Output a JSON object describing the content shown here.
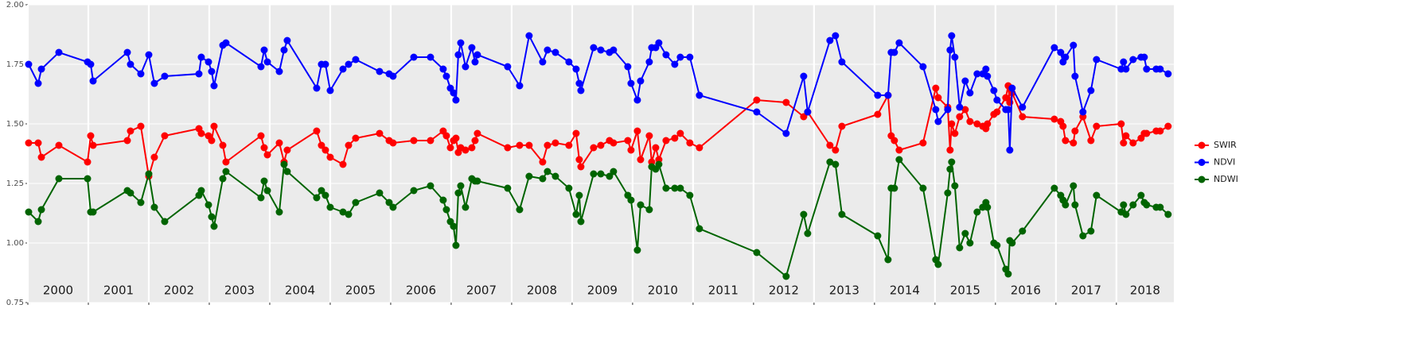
{
  "chart_data": {
    "type": "line",
    "x": [
      2000.013,
      2000.171,
      2000.224,
      2000.513,
      2000.987,
      2001.039,
      2001.079,
      2001.645,
      2001.697,
      2001.868,
      2002.0,
      2002.092,
      2002.263,
      2002.829,
      2002.868,
      2002.987,
      2003.039,
      2003.079,
      2003.224,
      2003.276,
      2003.855,
      2003.908,
      2003.961,
      2004.158,
      2004.237,
      2004.289,
      2004.776,
      2004.855,
      2004.921,
      2005.0,
      2005.211,
      2005.303,
      2005.421,
      2005.816,
      2005.974,
      2006.039,
      2006.382,
      2006.658,
      2006.868,
      2006.921,
      2006.987,
      2007.039,
      2007.079,
      2007.118,
      2007.158,
      2007.237,
      2007.342,
      2007.395,
      2007.434,
      2007.934,
      2008.132,
      2008.289,
      2008.513,
      2008.592,
      2008.724,
      2008.947,
      2009.066,
      2009.118,
      2009.145,
      2009.355,
      2009.474,
      2009.618,
      2009.684,
      2009.921,
      2009.974,
      2010.079,
      2010.132,
      2010.276,
      2010.316,
      2010.382,
      2010.434,
      2010.553,
      2010.697,
      2010.789,
      2010.947,
      2011.105,
      2012.053,
      2012.539,
      2012.829,
      2012.895,
      2013.263,
      2013.355,
      2013.461,
      2014.053,
      2014.224,
      2014.276,
      2014.329,
      2014.408,
      2014.803,
      2015.013,
      2015.053,
      2015.211,
      2015.25,
      2015.276,
      2015.329,
      2015.408,
      2015.5,
      2015.579,
      2015.697,
      2015.789,
      2015.842,
      2015.868,
      2015.974,
      2016.026,
      2016.171,
      2016.211,
      2016.237,
      2016.276,
      2016.447,
      2016.974,
      2017.079,
      2017.118,
      2017.158,
      2017.289,
      2017.316,
      2017.447,
      2017.579,
      2017.671,
      2018.079,
      2018.118,
      2018.158,
      2018.276,
      2018.408,
      2018.461,
      2018.5,
      2018.658,
      2018.724,
      2018.855
    ],
    "series": [
      {
        "name": "SWIR",
        "color": "#ff0000",
        "values": [
          1.42,
          1.42,
          1.36,
          1.41,
          1.34,
          1.45,
          1.41,
          1.43,
          1.47,
          1.49,
          1.28,
          1.36,
          1.45,
          1.48,
          1.46,
          1.45,
          1.43,
          1.49,
          1.41,
          1.34,
          1.45,
          1.4,
          1.37,
          1.42,
          1.34,
          1.39,
          1.47,
          1.41,
          1.39,
          1.36,
          1.33,
          1.41,
          1.44,
          1.46,
          1.43,
          1.42,
          1.43,
          1.43,
          1.47,
          1.45,
          1.4,
          1.43,
          1.44,
          1.38,
          1.4,
          1.39,
          1.4,
          1.43,
          1.46,
          1.4,
          1.41,
          1.41,
          1.34,
          1.41,
          1.42,
          1.41,
          1.46,
          1.35,
          1.32,
          1.4,
          1.41,
          1.43,
          1.42,
          1.43,
          1.39,
          1.47,
          1.35,
          1.45,
          1.34,
          1.4,
          1.35,
          1.43,
          1.44,
          1.46,
          1.42,
          1.4,
          1.6,
          1.59,
          1.53,
          1.55,
          1.41,
          1.39,
          1.49,
          1.54,
          1.62,
          1.45,
          1.43,
          1.39,
          1.42,
          1.65,
          1.61,
          1.57,
          1.39,
          1.5,
          1.46,
          1.53,
          1.56,
          1.51,
          1.5,
          1.49,
          1.48,
          1.5,
          1.54,
          1.55,
          1.61,
          1.66,
          1.59,
          1.63,
          1.53,
          1.52,
          1.51,
          1.49,
          1.43,
          1.42,
          1.47,
          1.53,
          1.43,
          1.49,
          1.5,
          1.42,
          1.45,
          1.42,
          1.44,
          1.46,
          1.46,
          1.47,
          1.47,
          1.49
        ]
      },
      {
        "name": "NDVI",
        "color": "#0000ff",
        "values": [
          1.75,
          1.67,
          1.73,
          1.8,
          1.76,
          1.75,
          1.68,
          1.8,
          1.75,
          1.71,
          1.79,
          1.67,
          1.7,
          1.71,
          1.78,
          1.76,
          1.72,
          1.66,
          1.83,
          1.84,
          1.74,
          1.81,
          1.76,
          1.72,
          1.81,
          1.85,
          1.65,
          1.75,
          1.75,
          1.64,
          1.73,
          1.75,
          1.77,
          1.72,
          1.71,
          1.7,
          1.78,
          1.78,
          1.73,
          1.7,
          1.65,
          1.63,
          1.6,
          1.79,
          1.84,
          1.74,
          1.82,
          1.76,
          1.79,
          1.74,
          1.66,
          1.87,
          1.76,
          1.81,
          1.8,
          1.76,
          1.73,
          1.67,
          1.64,
          1.82,
          1.81,
          1.8,
          1.81,
          1.74,
          1.67,
          1.6,
          1.68,
          1.76,
          1.82,
          1.82,
          1.84,
          1.79,
          1.75,
          1.78,
          1.78,
          1.62,
          1.55,
          1.46,
          1.7,
          1.55,
          1.85,
          1.87,
          1.76,
          1.62,
          1.62,
          1.8,
          1.8,
          1.84,
          1.74,
          1.56,
          1.51,
          1.56,
          1.81,
          1.87,
          1.78,
          1.57,
          1.68,
          1.63,
          1.71,
          1.71,
          1.73,
          1.7,
          1.64,
          1.6,
          1.56,
          1.56,
          1.39,
          1.65,
          1.57,
          1.82,
          1.8,
          1.76,
          1.78,
          1.83,
          1.7,
          1.55,
          1.64,
          1.77,
          1.73,
          1.76,
          1.73,
          1.77,
          1.78,
          1.78,
          1.73,
          1.73,
          1.73,
          1.71
        ]
      },
      {
        "name": "NDWI",
        "color": "#006400",
        "values": [
          1.13,
          1.09,
          1.14,
          1.27,
          1.27,
          1.13,
          1.13,
          1.22,
          1.21,
          1.17,
          1.29,
          1.15,
          1.09,
          1.2,
          1.22,
          1.16,
          1.11,
          1.07,
          1.27,
          1.3,
          1.19,
          1.26,
          1.22,
          1.13,
          1.33,
          1.3,
          1.19,
          1.22,
          1.2,
          1.15,
          1.13,
          1.12,
          1.17,
          1.21,
          1.17,
          1.15,
          1.22,
          1.24,
          1.18,
          1.14,
          1.09,
          1.07,
          0.99,
          1.21,
          1.24,
          1.15,
          1.27,
          1.26,
          1.26,
          1.23,
          1.14,
          1.28,
          1.27,
          1.3,
          1.28,
          1.23,
          1.12,
          1.2,
          1.09,
          1.29,
          1.29,
          1.28,
          1.3,
          1.2,
          1.18,
          0.97,
          1.16,
          1.14,
          1.32,
          1.31,
          1.33,
          1.23,
          1.23,
          1.23,
          1.2,
          1.06,
          0.96,
          0.86,
          1.12,
          1.04,
          1.34,
          1.33,
          1.12,
          1.03,
          0.93,
          1.23,
          1.23,
          1.35,
          1.23,
          0.93,
          0.91,
          1.21,
          1.31,
          1.34,
          1.24,
          0.98,
          1.04,
          1.0,
          1.13,
          1.15,
          1.17,
          1.15,
          1.0,
          0.99,
          0.89,
          0.87,
          1.01,
          1.0,
          1.05,
          1.23,
          1.2,
          1.18,
          1.16,
          1.24,
          1.16,
          1.03,
          1.05,
          1.2,
          1.13,
          1.16,
          1.12,
          1.16,
          1.2,
          1.17,
          1.16,
          1.15,
          1.15,
          1.12
        ]
      }
    ],
    "xlim": [
      2000,
      2018.95
    ],
    "xticks": [
      {
        "value": 2000,
        "label": "2000"
      },
      {
        "value": 2001,
        "label": "2001"
      },
      {
        "value": 2002,
        "label": "2002"
      },
      {
        "value": 2003,
        "label": "2003"
      },
      {
        "value": 2004,
        "label": "2004"
      },
      {
        "value": 2005,
        "label": "2005"
      },
      {
        "value": 2006,
        "label": "2006"
      },
      {
        "value": 2007,
        "label": "2007"
      },
      {
        "value": 2008,
        "label": "2008"
      },
      {
        "value": 2009,
        "label": "2009"
      },
      {
        "value": 2010,
        "label": "2010"
      },
      {
        "value": 2011,
        "label": "2011"
      },
      {
        "value": 2012,
        "label": "2012"
      },
      {
        "value": 2013,
        "label": "2013"
      },
      {
        "value": 2014,
        "label": "2014"
      },
      {
        "value": 2015,
        "label": "2015"
      },
      {
        "value": 2016,
        "label": "2016"
      },
      {
        "value": 2017,
        "label": "2017"
      },
      {
        "value": 2018,
        "label": "2018"
      }
    ],
    "ylim": [
      0.75,
      2.0
    ],
    "yticks": [
      0.75,
      {
        "value": 1.0,
        "label": "1.00"
      },
      1.25,
      {
        "value": 1.5,
        "label": "1.50"
      },
      1.75,
      {
        "value": 2.0,
        "label": "2.00"
      }
    ],
    "grid": true,
    "legend": "right"
  }
}
